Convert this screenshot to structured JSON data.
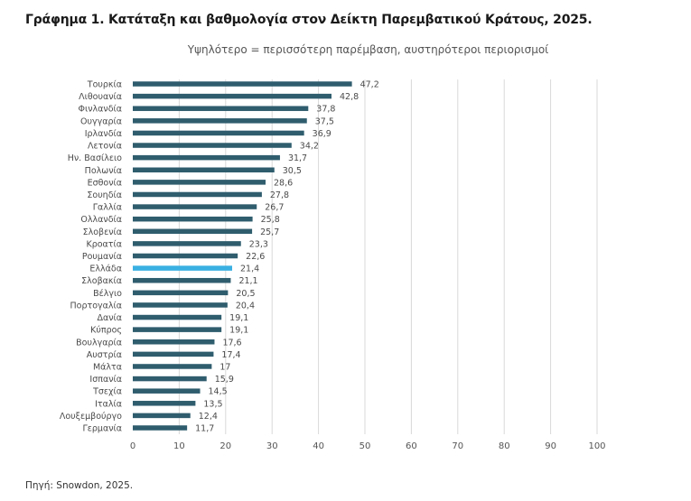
{
  "title": "Γράφημα 1. Κατάταξη και βαθμολογία στον Δείκτη Παρεμβατικού Κράτους, 2025.",
  "subtitle": "Υψηλότερο = περισσότερη παρέμβαση, αυστηρότεροι περιορισμοί",
  "source": "Πηγή: Snowdon, 2025.",
  "colors": {
    "bar": "#2f5d6e",
    "highlight": "#3ab0e2",
    "grid": "#d9d9d9",
    "label": "#4a4a4a"
  },
  "chart_data": {
    "type": "bar",
    "orientation": "horizontal",
    "categories": [
      "Τουρκία",
      "Λιθουανία",
      "Φινλανδία",
      "Ουγγαρία",
      "Ιρλανδία",
      "Λετονία",
      "Ην. Βασίλειο",
      "Πολωνία",
      "Εσθονία",
      "Σουηδία",
      "Γαλλία",
      "Ολλανδία",
      "Σλοβενία",
      "Κροατία",
      "Ρουμανία",
      "Ελλάδα",
      "Σλοβακία",
      "Βέλγιο",
      "Πορτογαλία",
      "Δανία",
      "Κύπρος",
      "Βουλγαρία",
      "Αυστρία",
      "Μάλτα",
      "Ισπανία",
      "Τσεχία",
      "Ιταλία",
      "Λουξεμβούργο",
      "Γερμανία"
    ],
    "values": [
      47.2,
      42.8,
      37.8,
      37.5,
      36.9,
      34.2,
      31.7,
      30.5,
      28.6,
      27.8,
      26.7,
      25.8,
      25.7,
      23.3,
      22.6,
      21.4,
      21.1,
      20.5,
      20.4,
      19.1,
      19.1,
      17.6,
      17.4,
      17,
      15.9,
      14.5,
      13.5,
      12.4,
      11.7
    ],
    "value_labels": [
      "47,2",
      "42,8",
      "37,8",
      "37,5",
      "36,9",
      "34,2",
      "31,7",
      "30,5",
      "28,6",
      "27,8",
      "26,7",
      "25,8",
      "25,7",
      "23,3",
      "22,6",
      "21,4",
      "21,1",
      "20,5",
      "20,4",
      "19,1",
      "19,1",
      "17,6",
      "17,4",
      "17",
      "15,9",
      "14,5",
      "13,5",
      "12,4",
      "11,7"
    ],
    "highlight": "Ελλάδα",
    "xlim": [
      0,
      100
    ],
    "xticks": [
      0,
      10,
      20,
      30,
      40,
      50,
      60,
      70,
      80,
      90,
      100
    ],
    "grid": true,
    "legend": "none"
  }
}
